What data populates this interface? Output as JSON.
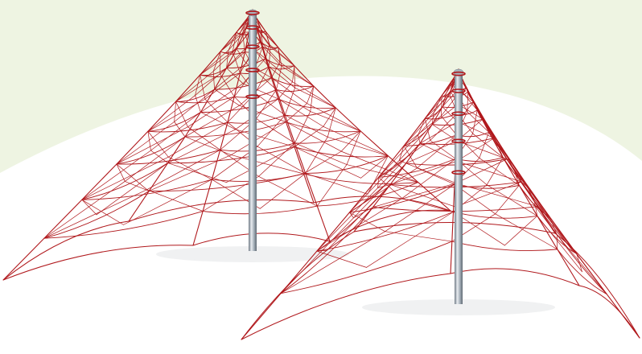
{
  "image": {
    "subject": "rope-net-pyramid-climbing-frames",
    "background": {
      "base": "#ffffff",
      "arc_band": "#eef4e2"
    },
    "colors": {
      "rope": "#b0181c",
      "pole_light": "#e9edf1",
      "pole_mid": "#a9b3bc",
      "pole_dark": "#6f7a84",
      "shadow": "#e6e8ea"
    },
    "structures": [
      {
        "name": "large-pyramid-net",
        "rings": 9
      },
      {
        "name": "small-pyramid-net",
        "rings": 8
      }
    ]
  }
}
